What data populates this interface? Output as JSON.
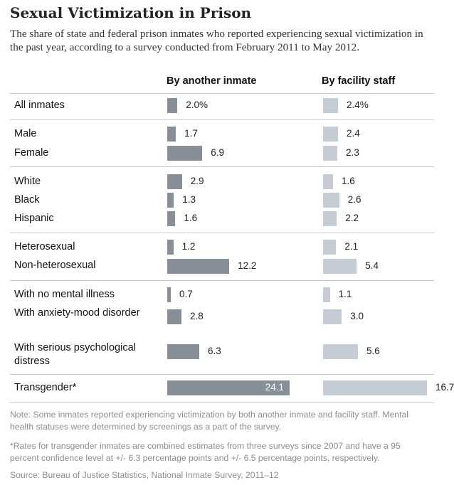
{
  "title": "Sexual Victimization in Prison",
  "subtitle": "The share of state and federal prison inmates who reported experiencing sexual victimization in the past year, according to a survey conducted from February 2011 to May 2012.",
  "chart_data": {
    "type": "bar",
    "orientation": "horizontal",
    "title": "Sexual Victimization in Prison",
    "series": [
      {
        "name": "By another inmate",
        "color": "#898f96",
        "values": [
          2.0,
          1.7,
          6.9,
          2.9,
          1.3,
          1.6,
          1.2,
          12.2,
          0.7,
          2.8,
          6.3,
          24.1
        ],
        "labels": [
          "2.0%",
          "1.7",
          "6.9",
          "2.9",
          "1.3",
          "1.6",
          "1.2",
          "12.2",
          "0.7",
          "2.8",
          "6.3",
          "24.1"
        ]
      },
      {
        "name": "By facility staff",
        "color": "#c5ccd3",
        "values": [
          2.4,
          2.4,
          2.3,
          1.6,
          2.6,
          2.2,
          2.1,
          5.4,
          1.1,
          3.0,
          5.6,
          16.7
        ],
        "labels": [
          "2.4%",
          "2.4",
          "2.3",
          "1.6",
          "2.6",
          "2.2",
          "2.1",
          "5.4",
          "1.1",
          "3.0",
          "5.6",
          "16.7"
        ]
      }
    ],
    "categories": [
      "All inmates",
      "Male",
      "Female",
      "White",
      "Black",
      "Hispanic",
      "Heterosexual",
      "Non-heterosexual",
      "With no mental illness",
      "With anxiety-mood disorder",
      "With serious psychological distress",
      "Transgender*"
    ]
  },
  "rows": [
    {
      "label": "All inmates"
    },
    {
      "label": "Male"
    },
    {
      "label": "Female"
    },
    {
      "label": "White"
    },
    {
      "label": "Black"
    },
    {
      "label": "Hispanic"
    },
    {
      "label": "Heterosexual"
    },
    {
      "label": "Non-heterosexual"
    },
    {
      "label": "With no mental illness"
    },
    {
      "label": "With anxiety-mood disorder"
    },
    {
      "label": "With serious psychological distress"
    },
    {
      "label": "Transgender*"
    }
  ],
  "notes": {
    "note": "Note: Some inmates reported experiencing victimization by both another inmate and facility staff. Mental health statuses were determined by screenings as a part of the survey.",
    "footnote": "*Rates for transgender inmates are combined estimates from three surveys since 2007 and have a 95 percent confidence level at +/- 6.3 percentage points and +/- 6.5 percentage points, respectively.",
    "source": "Source: Bureau of Justice Statistics, National Inmate Survey, 2011–12"
  }
}
